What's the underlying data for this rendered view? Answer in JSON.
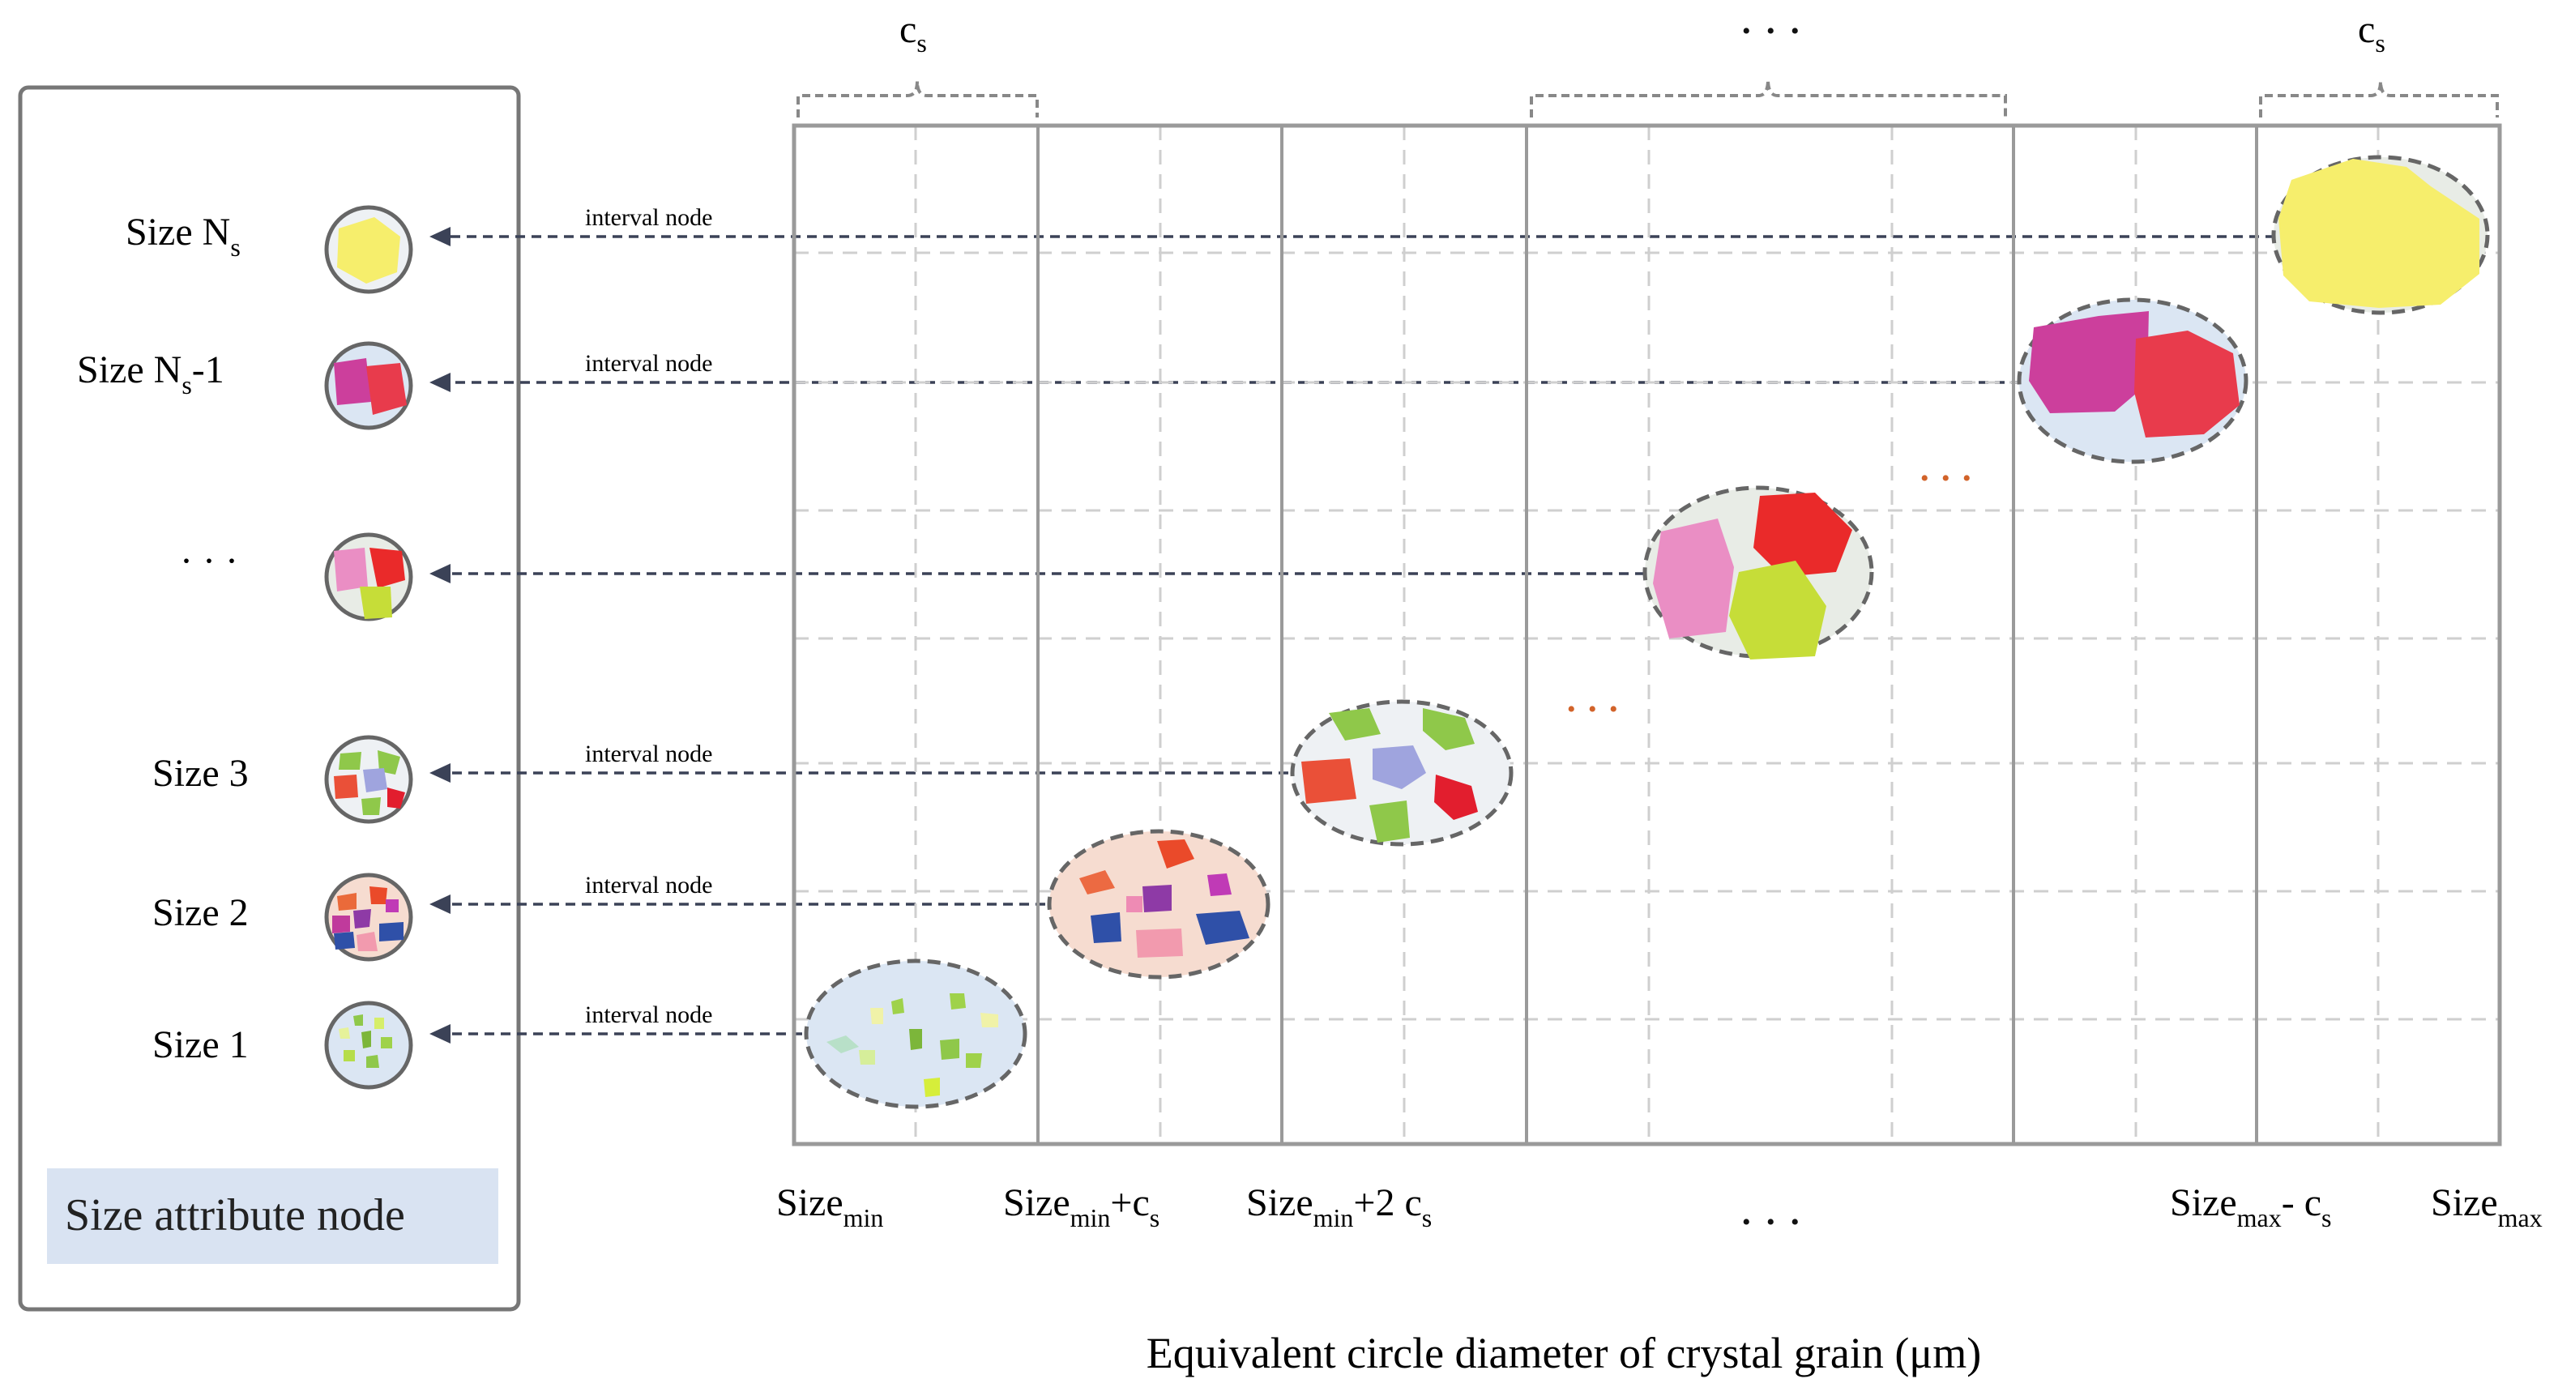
{
  "panel": {
    "title": "Size attribute node",
    "nodes": [
      {
        "label": "Size N",
        "sub": "s",
        "suffix": "",
        "link": "interval node"
      },
      {
        "label": "Size N",
        "sub": "s",
        "suffix": "-1",
        "link": "interval node"
      },
      {
        "label": "· · ·",
        "sub": "",
        "suffix": "",
        "link": ""
      },
      {
        "label": "Size 3",
        "sub": "",
        "suffix": "",
        "link": "interval node"
      },
      {
        "label": "Size 2",
        "sub": "",
        "suffix": "",
        "link": "interval node"
      },
      {
        "label": "Size 1",
        "sub": "",
        "suffix": "",
        "link": "interval node"
      }
    ]
  },
  "top_labels": {
    "left": {
      "main": "c",
      "sub": "s"
    },
    "middle": "• • •",
    "right": {
      "main": "c",
      "sub": "s"
    }
  },
  "x_ticks": [
    {
      "main": "Size",
      "sub": "min",
      "tail": ""
    },
    {
      "main": "Size",
      "sub": "min",
      "tail": "+c",
      "tail_sub": "s"
    },
    {
      "main": "Size",
      "sub": "min",
      "tail": "+2 c",
      "tail_sub": "s"
    },
    {
      "main": "Size",
      "sub": "max",
      "tail": "- c",
      "tail_sub": "s"
    },
    {
      "main": "Size",
      "sub": "max",
      "tail": ""
    }
  ],
  "x_ellipsis": "• • •",
  "x_axis_title": "Equivalent circle diameter of crystal grain (μm)",
  "orange_ellipsis": "• • •",
  "colors": {
    "cluster_blue": "#dbe6f3",
    "cluster_peach": "#f6dcd0",
    "cluster_gray": "#e8ece6",
    "axis_major": "#9a9a9a",
    "arrow": "#3b4257",
    "label_box": "#d9e3f2",
    "orange_dots": "#d2632a"
  }
}
